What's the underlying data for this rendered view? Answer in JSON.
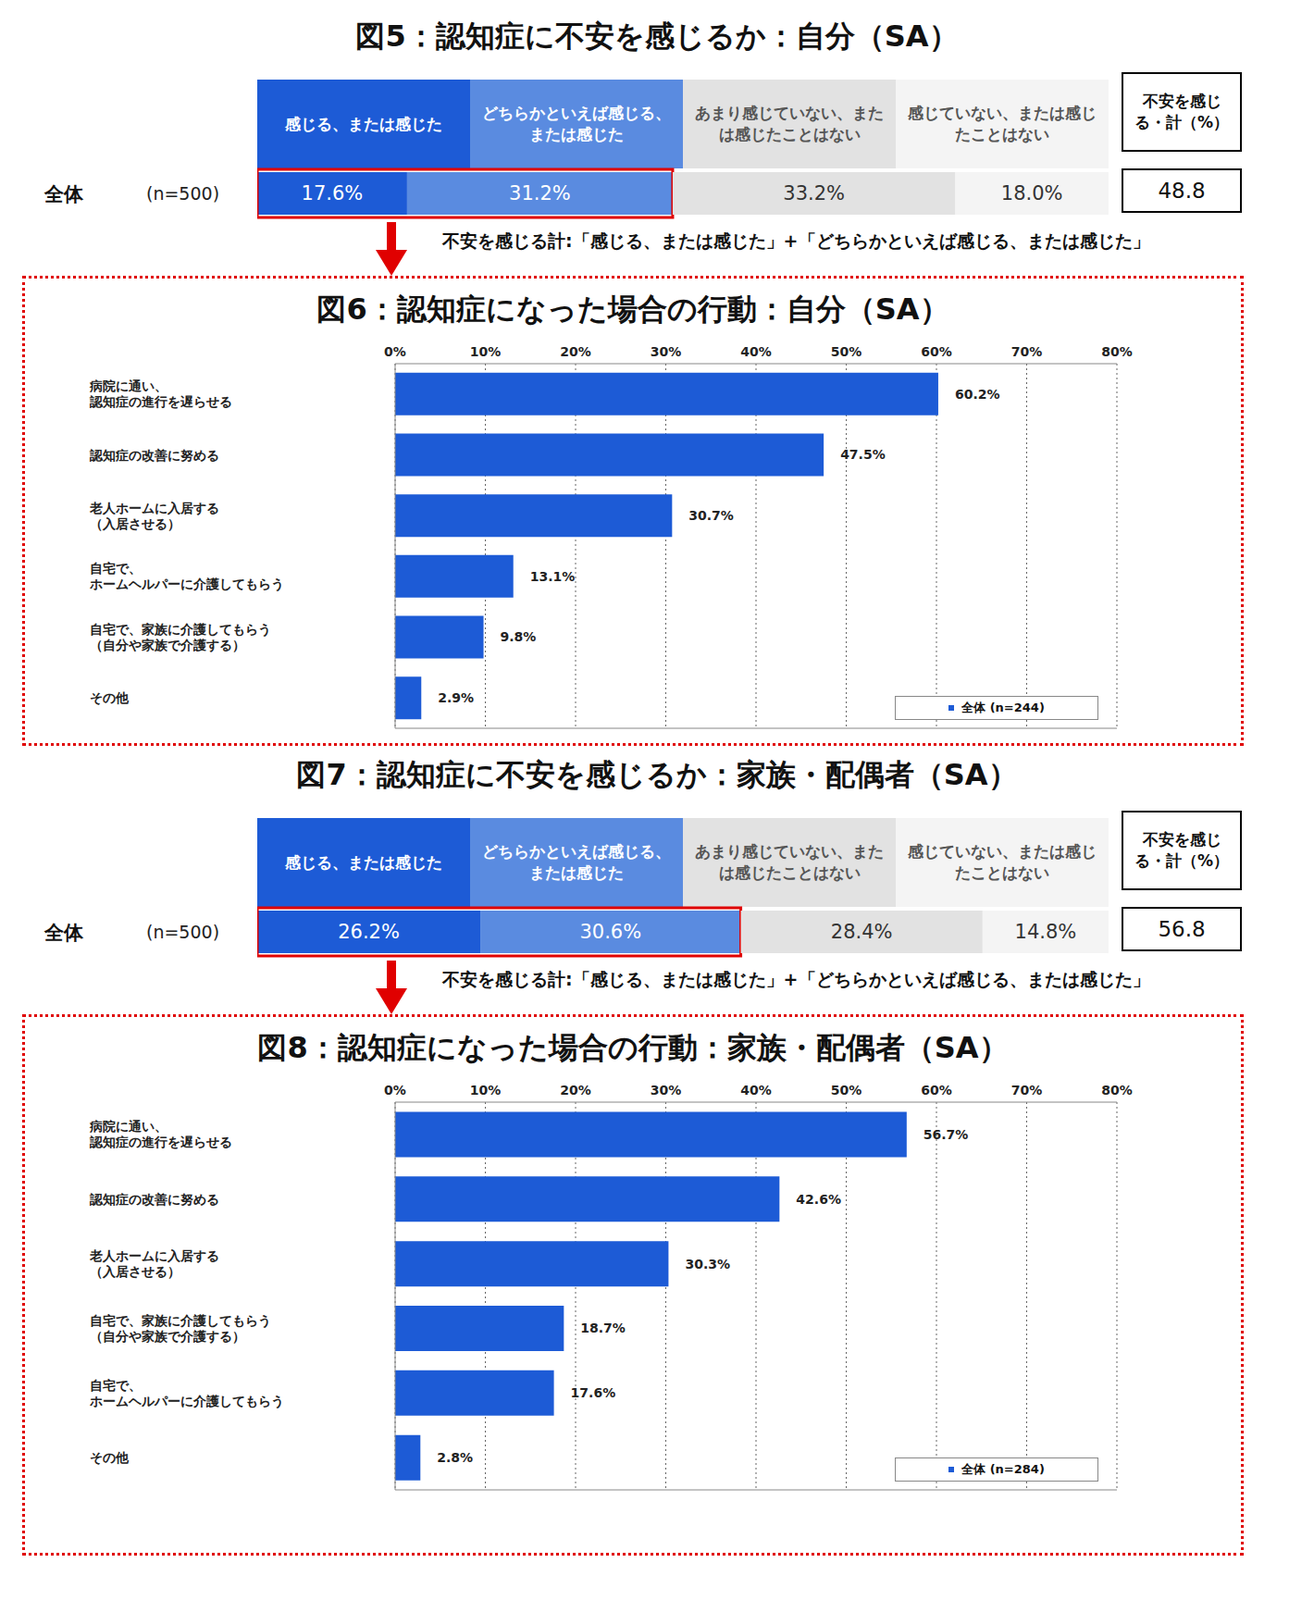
{
  "chart_data": [
    {
      "type": "bar",
      "title": "図5：認知症に不安を感じるか：自分（SA）",
      "orientation": "horizontal",
      "stacked": true,
      "data_labels": true,
      "tick_labels": "y",
      "categories": [
        "全体"
      ],
      "n": "(n=500)",
      "xlim": [
        0,
        100
      ],
      "series": [
        {
          "name": "感じる、または感じた",
          "color": "#1d5bd6",
          "values": [
            17.6
          ],
          "value_labels": [
            "17.6%"
          ]
        },
        {
          "name": "どちらかといえば感じる、または感じた",
          "color": "#5a8be0",
          "values": [
            31.2
          ],
          "value_labels": [
            "31.2%"
          ]
        },
        {
          "name": "あまり感じていない、または感じたことはない",
          "color": "#e2e2e2",
          "values": [
            33.2
          ],
          "value_labels": [
            "33.2%"
          ]
        },
        {
          "name": "感じていない、または感じたことはない",
          "color": "#f4f4f4",
          "values": [
            18.0
          ],
          "value_labels": [
            "18.0%"
          ]
        }
      ],
      "total_label": "不安を感じる・計（%）",
      "total": 48.8,
      "note": "不安を感じる計:「感じる、または感じた」+「どちらかといえば感じる、または感じた」"
    },
    {
      "type": "bar",
      "title": "図6：認知症になった場合の行動：自分（SA）",
      "orientation": "horizontal",
      "data_labels": true,
      "grid": true,
      "legend": "lower right",
      "categories": [
        "病院に通い、認知症の進行を遅らせる",
        "認知症の改善に努める",
        "老人ホームに入居する（入居させる）",
        "自宅で、ホームヘルパーに介護してもらう",
        "自宅で、家族に介護してもらう（自分や家族で介護する）",
        "その他"
      ],
      "xlim": [
        0,
        80
      ],
      "xticks": [
        {
          "value": 0,
          "label": "0%"
        },
        {
          "value": 10,
          "label": "10%"
        },
        {
          "value": 20,
          "label": "20%"
        },
        {
          "value": 30,
          "label": "30%"
        },
        {
          "value": 40,
          "label": "40%"
        },
        {
          "value": 50,
          "label": "50%"
        },
        {
          "value": 60,
          "label": "60%"
        },
        {
          "value": 70,
          "label": "70%"
        },
        {
          "value": 80,
          "label": "80%"
        }
      ],
      "series": [
        {
          "name": "全体 (n=244)",
          "color": "#1d5bd6",
          "values": [
            60.2,
            47.5,
            30.7,
            13.1,
            9.8,
            2.9
          ],
          "value_labels": [
            "60.2%",
            "47.5%",
            "30.7%",
            "13.1%",
            "9.8%",
            "2.9%"
          ]
        }
      ]
    },
    {
      "type": "bar",
      "title": "図7：認知症に不安を感じるか：家族・配偶者（SA）",
      "orientation": "horizontal",
      "stacked": true,
      "data_labels": true,
      "tick_labels": "y",
      "categories": [
        "全体"
      ],
      "n": "(n=500)",
      "xlim": [
        0,
        100
      ],
      "series": [
        {
          "name": "感じる、または感じた",
          "color": "#1d5bd6",
          "values": [
            26.2
          ],
          "value_labels": [
            "26.2%"
          ]
        },
        {
          "name": "どちらかといえば感じる、または感じた",
          "color": "#5a8be0",
          "values": [
            30.6
          ],
          "value_labels": [
            "30.6%"
          ]
        },
        {
          "name": "あまり感じていない、または感じたことはない",
          "color": "#e2e2e2",
          "values": [
            28.4
          ],
          "value_labels": [
            "28.4%"
          ]
        },
        {
          "name": "感じていない、または感じたことはない",
          "color": "#f4f4f4",
          "values": [
            14.8
          ],
          "value_labels": [
            "14.8%"
          ]
        }
      ],
      "total_label": "不安を感じる・計（%）",
      "total": 56.8,
      "note": "不安を感じる計:「感じる、または感じた」+「どちらかといえば感じる、または感じた」"
    },
    {
      "type": "bar",
      "title": "図8：認知症になった場合の行動：家族・配偶者（SA）",
      "orientation": "horizontal",
      "data_labels": true,
      "grid": true,
      "legend": "lower right",
      "categories": [
        "病院に通い、認知症の進行を遅らせる",
        "認知症の改善に努める",
        "老人ホームに入居する（入居させる）",
        "自宅で、家族に介護してもらう（自分や家族で介護する）",
        "自宅で、ホームヘルパーに介護してもらう",
        "その他"
      ],
      "xlim": [
        0,
        80
      ],
      "xticks": [
        {
          "value": 0,
          "label": "0%"
        },
        {
          "value": 10,
          "label": "10%"
        },
        {
          "value": 20,
          "label": "20%"
        },
        {
          "value": 30,
          "label": "30%"
        },
        {
          "value": 40,
          "label": "40%"
        },
        {
          "value": 50,
          "label": "50%"
        },
        {
          "value": 60,
          "label": "60%"
        },
        {
          "value": 70,
          "label": "70%"
        },
        {
          "value": 80,
          "label": "80%"
        }
      ],
      "series": [
        {
          "name": "全体 (n=284)",
          "color": "#1d5bd6",
          "values": [
            56.7,
            42.6,
            30.3,
            18.7,
            17.6,
            2.8
          ],
          "value_labels": [
            "56.7%",
            "42.6%",
            "30.3%",
            "18.7%",
            "17.6%",
            "2.8%"
          ]
        }
      ]
    }
  ]
}
